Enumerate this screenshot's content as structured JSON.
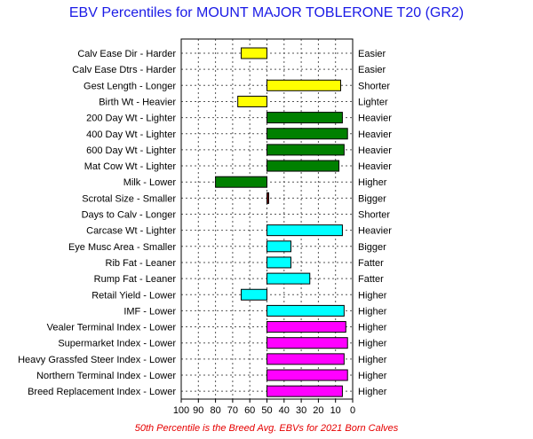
{
  "title": "EBV Percentiles for MOUNT MAJOR TOBLERONE T20 (GR2)",
  "footnote": "50th Percentile is the Breed Avg. EBVs for 2021 Born Calves",
  "colors": {
    "title": "#1a1ae6",
    "footnote": "#e60000",
    "grid": "#555555"
  },
  "chart_data": {
    "type": "bar",
    "orientation": "horizontal",
    "x_axis": {
      "ticks": [
        100,
        90,
        80,
        70,
        60,
        50,
        40,
        30,
        20,
        10,
        0
      ],
      "range": [
        100,
        0
      ],
      "reversed": true,
      "grid": true
    },
    "baseline": 50,
    "traits": [
      {
        "left_label": "Calv Ease Dir - Harder",
        "right_label": "Easier",
        "percentile": 65,
        "color": "#ffff00"
      },
      {
        "left_label": "Calv Ease Dtrs - Harder",
        "right_label": "Easier",
        "percentile": null,
        "color": null
      },
      {
        "left_label": "Gest Length - Longer",
        "right_label": "Shorter",
        "percentile": 7,
        "color": "#ffff00"
      },
      {
        "left_label": "Birth Wt - Heavier",
        "right_label": "Lighter",
        "percentile": 67,
        "color": "#ffff00"
      },
      {
        "left_label": "200 Day Wt - Lighter",
        "right_label": "Heavier",
        "percentile": 6,
        "color": "#008000"
      },
      {
        "left_label": "400 Day Wt - Lighter",
        "right_label": "Heavier",
        "percentile": 3,
        "color": "#008000"
      },
      {
        "left_label": "600 Day Wt - Lighter",
        "right_label": "Heavier",
        "percentile": 5,
        "color": "#008000"
      },
      {
        "left_label": "Mat Cow Wt - Lighter",
        "right_label": "Heavier",
        "percentile": 8,
        "color": "#008000"
      },
      {
        "left_label": "Milk - Lower",
        "right_label": "Higher",
        "percentile": 80,
        "color": "#008000"
      },
      {
        "left_label": "Scrotal Size - Smaller",
        "right_label": "Bigger",
        "percentile": 49,
        "color": "#800000"
      },
      {
        "left_label": "Days to Calv - Longer",
        "right_label": "Shorter",
        "percentile": null,
        "color": null
      },
      {
        "left_label": "Carcase Wt - Lighter",
        "right_label": "Heavier",
        "percentile": 6,
        "color": "#00ffff"
      },
      {
        "left_label": "Eye Musc Area - Smaller",
        "right_label": "Bigger",
        "percentile": 36,
        "color": "#00ffff"
      },
      {
        "left_label": "Rib Fat - Leaner",
        "right_label": "Fatter",
        "percentile": 36,
        "color": "#00ffff"
      },
      {
        "left_label": "Rump Fat - Leaner",
        "right_label": "Fatter",
        "percentile": 25,
        "color": "#00ffff"
      },
      {
        "left_label": "Retail Yield - Lower",
        "right_label": "Higher",
        "percentile": 65,
        "color": "#00ffff"
      },
      {
        "left_label": "IMF - Lower",
        "right_label": "Higher",
        "percentile": 5,
        "color": "#00ffff"
      },
      {
        "left_label": "Vealer Terminal Index - Lower",
        "right_label": "Higher",
        "percentile": 4,
        "color": "#ff00ff"
      },
      {
        "left_label": "Supermarket Index - Lower",
        "right_label": "Higher",
        "percentile": 3,
        "color": "#ff00ff"
      },
      {
        "left_label": "Heavy Grassfed Steer Index - Lower",
        "right_label": "Higher",
        "percentile": 5,
        "color": "#ff00ff"
      },
      {
        "left_label": "Northern Terminal Index - Lower",
        "right_label": "Higher",
        "percentile": 3,
        "color": "#ff00ff"
      },
      {
        "left_label": "Breed Replacement Index - Lower",
        "right_label": "Higher",
        "percentile": 6,
        "color": "#ff00ff"
      }
    ]
  }
}
